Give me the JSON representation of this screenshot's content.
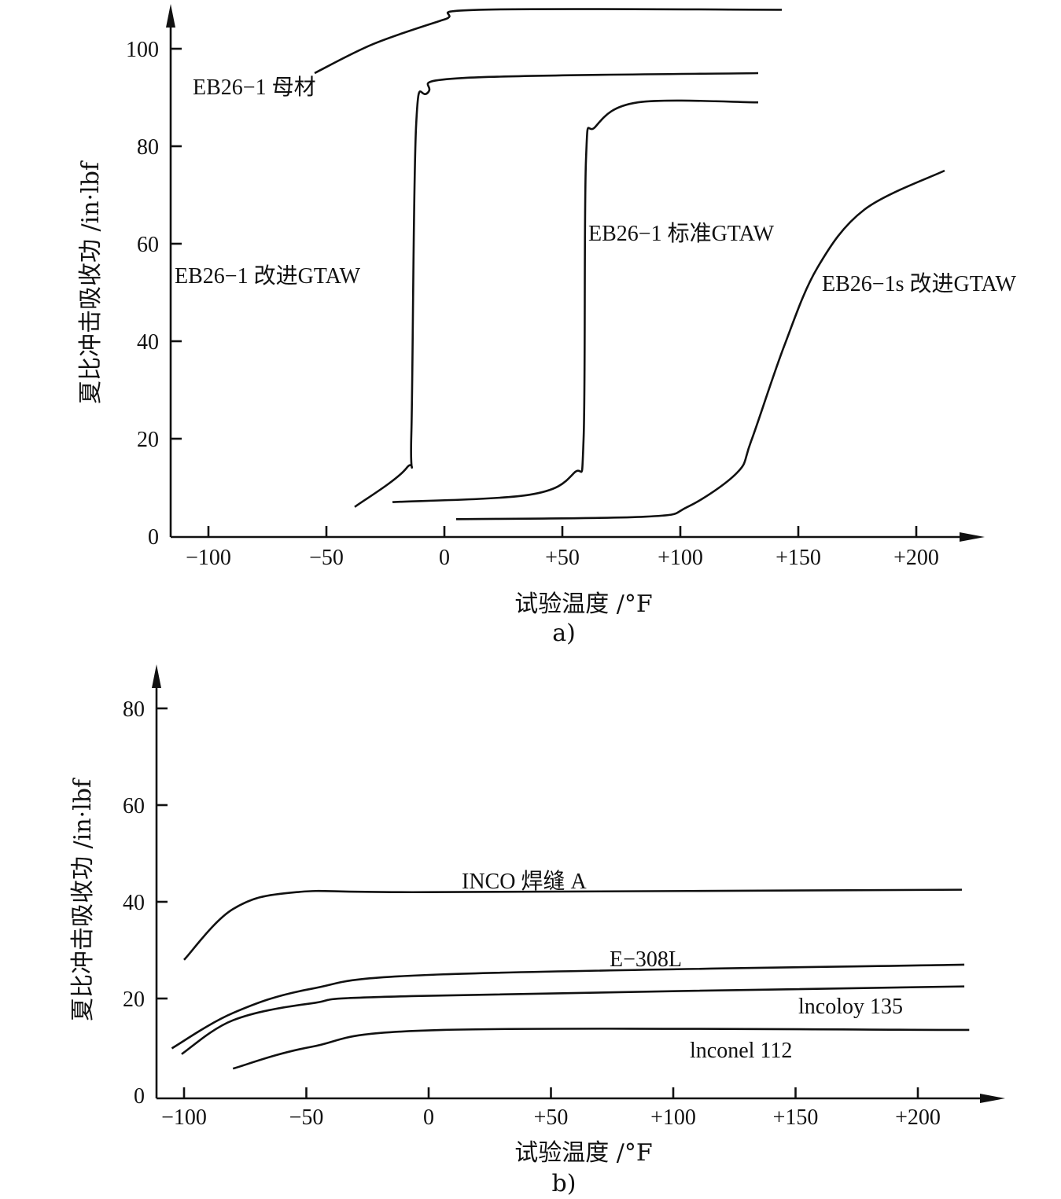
{
  "chart_data": [
    {
      "type": "line",
      "panel_label": "a)",
      "xlabel": "试验温度 /°F",
      "ylabel": "夏比冲击吸收功 /in·lbf",
      "xlim": [
        -115,
        230
      ],
      "ylim": [
        0,
        108
      ],
      "x_ticks": [
        -100,
        -50,
        0,
        50,
        100,
        150,
        200
      ],
      "x_tick_labels": [
        "−100",
        "−50",
        "0",
        "+50",
        "+100",
        "+150",
        "+200"
      ],
      "y_ticks": [
        0,
        20,
        40,
        60,
        80,
        100
      ],
      "y_tick_labels": [
        "0",
        "20",
        "40",
        "60",
        "80",
        "100"
      ],
      "grid": false,
      "series": [
        {
          "name": "EB26−1 母材",
          "x": [
            -55,
            -30,
            0,
            15,
            143
          ],
          "y": [
            95,
            101,
            106,
            108,
            108
          ]
        },
        {
          "name": "EB26−1 改进GTAW",
          "x": [
            -38,
            -16,
            -14,
            -12,
            -7,
            8,
            133
          ],
          "y": [
            6,
            14,
            21,
            84,
            91,
            94,
            95
          ]
        },
        {
          "name": "EB26−1 标准GTAW",
          "x": [
            -22,
            36,
            55,
            59,
            60,
            64,
            82,
            133
          ],
          "y": [
            7,
            8.5,
            13,
            20,
            77,
            84,
            89,
            89
          ]
        },
        {
          "name": "EB26−1s 改进GTAW",
          "x": [
            5,
            85,
            103,
            124,
            130,
            144,
            158,
            178,
            212
          ],
          "y": [
            3.5,
            4,
            6,
            13,
            19.5,
            39,
            55,
            67,
            75
          ]
        }
      ]
    },
    {
      "type": "line",
      "panel_label": "b)",
      "xlabel": "试验温度 /°F",
      "ylabel": "夏比冲击吸收功 /in·lbf",
      "xlim": [
        -110,
        235
      ],
      "ylim": [
        0,
        88
      ],
      "x_ticks": [
        -100,
        -50,
        0,
        50,
        100,
        150,
        200
      ],
      "x_tick_labels": [
        "−100",
        "−50",
        "0",
        "+50",
        "+100",
        "+150",
        "+200"
      ],
      "y_ticks": [
        0,
        20,
        40,
        60,
        80
      ],
      "y_tick_labels": [
        "0",
        "20",
        "40",
        "60",
        "80"
      ],
      "grid": false,
      "series": [
        {
          "name": "INCO 焊缝   A",
          "x": [
            -100,
            -80,
            -54,
            0,
            218
          ],
          "y": [
            28,
            38.5,
            42,
            42,
            42.5
          ]
        },
        {
          "name": "E−308L",
          "x": [
            -105,
            -80,
            -48,
            6,
            219
          ],
          "y": [
            9.7,
            17,
            22,
            25,
            27
          ]
        },
        {
          "name": "lncoloy 135",
          "x": [
            -101,
            -80,
            -48,
            -7,
            219
          ],
          "y": [
            8.5,
            15.5,
            19,
            20.5,
            22.5
          ]
        },
        {
          "name": "lnconel 112",
          "x": [
            -80,
            -48,
            6,
            221
          ],
          "y": [
            5.5,
            10,
            13.5,
            13.5
          ]
        }
      ]
    }
  ]
}
